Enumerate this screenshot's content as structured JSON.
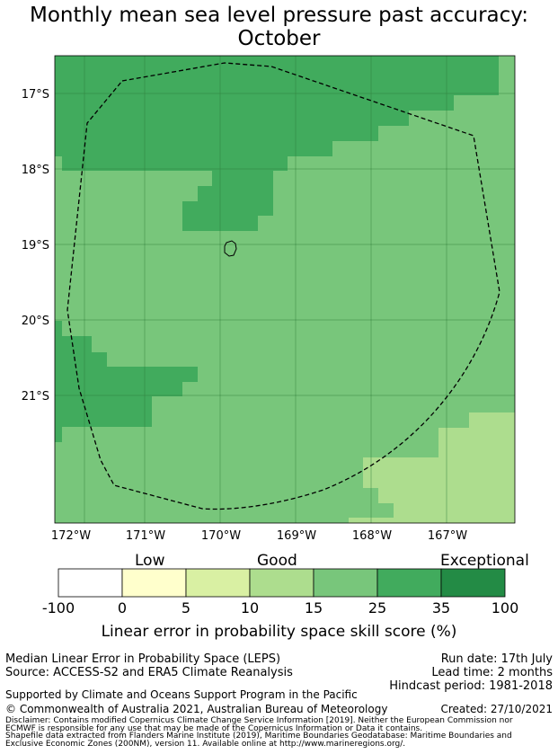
{
  "title": {
    "line1": "Monthly mean sea level pressure past accuracy:",
    "line2": "October"
  },
  "map": {
    "lat_labels": [
      "17°S",
      "18°S",
      "19°S",
      "20°S",
      "21°S"
    ],
    "lon_labels": [
      "172°W",
      "171°W",
      "170°W",
      "169°W",
      "168°W",
      "167°W"
    ],
    "colors": {
      "darkest": "#238b45",
      "dark": "#41ab5d",
      "mid": "#78c67b",
      "light": "#addd8e",
      "pale": "#d9f0a3",
      "cream": "#ffffcc",
      "white": "#ffffff"
    },
    "eez_boundary": "dashed",
    "island": "Niue"
  },
  "colorbar": {
    "category_low": "Low",
    "category_good": "Good",
    "category_exceptional": "Exceptional",
    "ticks": [
      "-100",
      "0",
      "5",
      "10",
      "15",
      "25",
      "35",
      "100"
    ],
    "label": "Linear error in probability space skill score (%)"
  },
  "footer": {
    "left1": "Median Linear Error in Probability Space (LEPS)",
    "left2": "Source: ACCESS-S2 and ERA5 Climate Reanalysis",
    "run_date": "Run date: 17th July",
    "lead_time": "Lead time: 2 months",
    "hindcast": "Hindcast period: 1981-2018",
    "support": "Supported by Climate and Oceans Support Program in the Pacific",
    "copyright": "© Commonwealth of Australia 2021, Australian Bureau of Meteorology",
    "created": "Created: 27/10/2021",
    "disclaimer1": "Disclaimer: Contains modified Copernicus Climate Change Service Information [2019]. Neither the European Commission nor",
    "disclaimer2": "ECMWF is responsible for any use that may be made of the Copernicus Information or Data it contains.",
    "shapefile1": "Shapefile data extracted from Flanders Marine Institute (2019), Maritime Boundaries Geodatabase: Maritime Boundaries and",
    "shapefile2": "Exclusive Economic Zones (200NM), version 11. Available online at http://www.marineregions.org/."
  }
}
